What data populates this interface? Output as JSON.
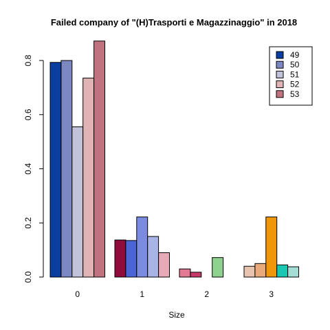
{
  "chart_data": {
    "type": "bar",
    "title": "Failed company of  \"(H)Trasporti e Magazzinaggio\" in 2018",
    "xlabel": "Size",
    "ylabel": "",
    "ylim": [
      0,
      0.9
    ],
    "yticks": [
      "0.0",
      "0.2",
      "0.4",
      "0.6",
      "0.8"
    ],
    "grid": false,
    "legend_position": "top-right",
    "legend": [
      {
        "label": "49",
        "color": "#0a3fa0"
      },
      {
        "label": "50",
        "color": "#7c88c2"
      },
      {
        "label": "51",
        "color": "#c2c2da"
      },
      {
        "label": "52",
        "color": "#e0b4b4"
      },
      {
        "label": "53",
        "color": "#c0737f"
      }
    ],
    "groups": [
      {
        "category": "0",
        "bars": [
          {
            "value": 0.793,
            "color": "#0a3fa0"
          },
          {
            "value": 0.8,
            "color": "#7c88c2"
          },
          {
            "value": 0.555,
            "color": "#c2c2da"
          },
          {
            "value": 0.735,
            "color": "#e0b4b4"
          },
          {
            "value": 0.872,
            "color": "#c0737f"
          }
        ]
      },
      {
        "category": "1",
        "bars": [
          {
            "value": 0.137,
            "color": "#8e0b3c"
          },
          {
            "value": 0.135,
            "color": "#4a66d4"
          },
          {
            "value": 0.222,
            "color": "#7a8be0"
          },
          {
            "value": 0.15,
            "color": "#a8b4e6"
          },
          {
            "value": 0.09,
            "color": "#e8aab8"
          }
        ]
      },
      {
        "category": "2",
        "bars": [
          {
            "value": 0.03,
            "color": "#e27a94"
          },
          {
            "value": 0.018,
            "color": "#c63a68"
          },
          {
            "value": 0.0,
            "color": "#ffffff"
          },
          {
            "value": 0.072,
            "color": "#8ed28e"
          },
          {
            "value": 0.0,
            "color": "#ffffff"
          }
        ]
      },
      {
        "category": "3",
        "bars": [
          {
            "value": 0.04,
            "color": "#e8c4b0"
          },
          {
            "value": 0.05,
            "color": "#e8aa7a"
          },
          {
            "value": 0.222,
            "color": "#f0960a"
          },
          {
            "value": 0.045,
            "color": "#18c8b0"
          },
          {
            "value": 0.038,
            "color": "#a4dcd6"
          }
        ]
      }
    ]
  }
}
